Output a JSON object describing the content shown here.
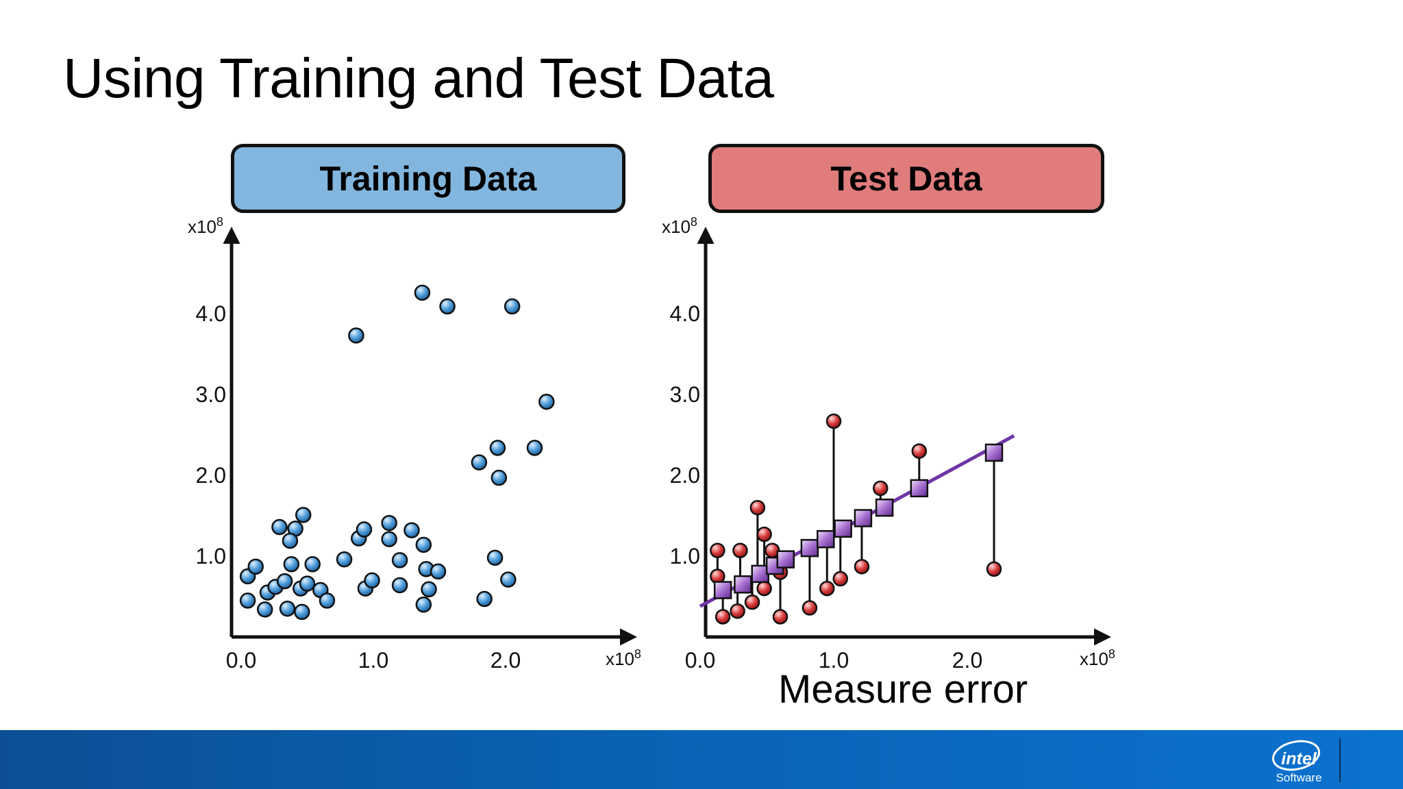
{
  "slide": {
    "title": "Using Training and Test Data",
    "measure_label": "Measure error"
  },
  "logo": {
    "wordmark": "intel",
    "sub": "Software"
  },
  "colors": {
    "training_header": "#82b6de",
    "test_header": "#e07c7c",
    "training_point": "#3d8fd1",
    "test_point": "#d42a2a",
    "prediction_marker": "#9b5ec4",
    "fit_line": "#6f35a5",
    "footer": "#0b62b4"
  },
  "chart_data": [
    {
      "type": "scatter",
      "title": "Training Data",
      "x_exponent": "x10",
      "x_exponent_power": "8",
      "y_exponent": "x10",
      "y_exponent_power": "8",
      "xticks": [
        "0.0",
        "1.0",
        "2.0"
      ],
      "xtick_values": [
        0,
        1,
        2
      ],
      "yticks": [
        "1.0",
        "2.0",
        "3.0",
        "4.0"
      ],
      "ytick_values": [
        1,
        2,
        3,
        4
      ],
      "xlim": [
        -0.08,
        3.0
      ],
      "ylim": [
        0,
        5.05
      ],
      "grid": false,
      "points": [
        [
          0.05,
          0.75
        ],
        [
          0.11,
          0.87
        ],
        [
          0.2,
          0.55
        ],
        [
          0.26,
          0.62
        ],
        [
          0.33,
          0.69
        ],
        [
          0.38,
          0.9
        ],
        [
          0.45,
          0.6
        ],
        [
          0.5,
          0.66
        ],
        [
          0.6,
          0.58
        ],
        [
          0.65,
          0.45
        ],
        [
          0.05,
          0.45
        ],
        [
          0.18,
          0.34
        ],
        [
          0.35,
          0.35
        ],
        [
          0.46,
          0.31
        ],
        [
          0.29,
          1.36
        ],
        [
          0.41,
          1.34
        ],
        [
          0.47,
          1.51
        ],
        [
          0.54,
          0.9
        ],
        [
          0.37,
          1.19
        ],
        [
          0.78,
          0.96
        ],
        [
          0.89,
          1.22
        ],
        [
          0.93,
          1.33
        ],
        [
          0.94,
          0.6
        ],
        [
          0.99,
          0.7
        ],
        [
          1.12,
          1.41
        ],
        [
          1.12,
          1.21
        ],
        [
          1.2,
          0.95
        ],
        [
          1.2,
          0.64
        ],
        [
          1.29,
          1.32
        ],
        [
          1.38,
          1.14
        ],
        [
          1.4,
          0.84
        ],
        [
          1.42,
          0.59
        ],
        [
          1.49,
          0.81
        ],
        [
          1.38,
          0.4
        ],
        [
          0.87,
          3.73
        ],
        [
          1.37,
          4.26
        ],
        [
          1.56,
          4.09
        ],
        [
          2.05,
          4.09
        ],
        [
          2.31,
          2.91
        ],
        [
          2.22,
          2.34
        ],
        [
          1.94,
          2.34
        ],
        [
          1.95,
          1.97
        ],
        [
          1.8,
          2.16
        ],
        [
          1.92,
          0.98
        ],
        [
          2.02,
          0.71
        ],
        [
          1.84,
          0.47
        ]
      ]
    },
    {
      "type": "scatter",
      "title": "Test Data",
      "x_exponent": "x10",
      "x_exponent_power": "8",
      "y_exponent": "x10",
      "y_exponent_power": "8",
      "xticks": [
        "0.0",
        "1.0",
        "2.0"
      ],
      "xtick_values": [
        0,
        1,
        2
      ],
      "yticks": [
        "1.0",
        "2.0",
        "3.0",
        "4.0"
      ],
      "ytick_values": [
        1,
        2,
        3,
        4
      ],
      "xlim": [
        -0.03,
        3.08
      ],
      "ylim": [
        0,
        5.05
      ],
      "grid": false,
      "fit_line": {
        "x": [
          0.0,
          2.35
        ],
        "y": [
          0.38,
          2.49
        ]
      },
      "residuals": [
        {
          "x": 0.17,
          "actual": 0.25,
          "predicted": 0.58
        },
        {
          "x": 0.13,
          "actual": 0.75,
          "predicted": 0.58
        },
        {
          "x": 0.13,
          "actual": 1.07,
          "predicted": 0.58
        },
        {
          "x": 0.28,
          "actual": 0.32,
          "predicted": 0.65
        },
        {
          "x": 0.3,
          "actual": 1.07,
          "predicted": 0.65
        },
        {
          "x": 0.39,
          "actual": 0.43,
          "predicted": 0.78
        },
        {
          "x": 0.43,
          "actual": 1.6,
          "predicted": 0.78
        },
        {
          "x": 0.48,
          "actual": 0.6,
          "predicted": 0.78
        },
        {
          "x": 0.48,
          "actual": 1.27,
          "predicted": 0.78
        },
        {
          "x": 0.54,
          "actual": 1.07,
          "predicted": 0.88
        },
        {
          "x": 0.6,
          "actual": 0.25,
          "predicted": 0.88
        },
        {
          "x": 0.6,
          "actual": 0.8,
          "predicted": 0.88
        },
        {
          "x": 0.82,
          "actual": 0.36,
          "predicted": 1.1
        },
        {
          "x": 0.95,
          "actual": 0.6,
          "predicted": 1.21
        },
        {
          "x": 1.0,
          "actual": 2.67,
          "predicted": 1.21
        },
        {
          "x": 1.05,
          "actual": 0.72,
          "predicted": 1.34
        },
        {
          "x": 1.21,
          "actual": 0.87,
          "predicted": 1.47
        },
        {
          "x": 1.35,
          "actual": 1.84,
          "predicted": 1.6
        },
        {
          "x": 1.64,
          "actual": 2.3,
          "predicted": 1.84
        },
        {
          "x": 2.2,
          "actual": 0.84,
          "predicted": 2.28
        }
      ],
      "predicted_markers": [
        [
          0.17,
          0.58
        ],
        [
          0.32,
          0.65
        ],
        [
          0.45,
          0.78
        ],
        [
          0.56,
          0.88
        ],
        [
          0.64,
          0.96
        ],
        [
          0.82,
          1.1
        ],
        [
          0.94,
          1.21
        ],
        [
          1.07,
          1.34
        ],
        [
          1.22,
          1.47
        ],
        [
          1.38,
          1.6
        ],
        [
          1.64,
          1.84
        ],
        [
          2.2,
          2.28
        ]
      ]
    }
  ]
}
